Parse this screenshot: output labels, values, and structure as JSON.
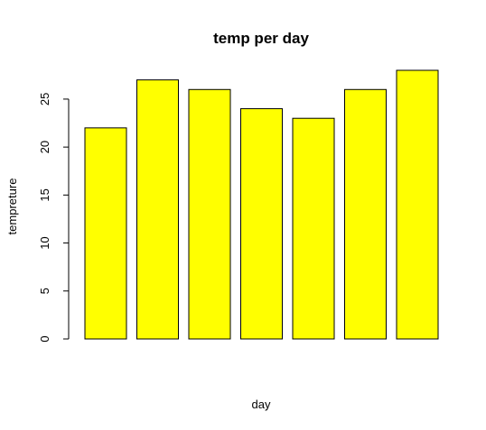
{
  "chart_data": {
    "type": "bar",
    "title": "temp per day",
    "xlabel": "day",
    "ylabel": "tempreture",
    "categories": [
      "",
      "",
      "",
      "",
      "",
      "",
      ""
    ],
    "values": [
      22,
      27,
      26,
      24,
      23,
      26,
      28
    ],
    "ylim": [
      0,
      28
    ],
    "yticks": [
      0,
      5,
      10,
      15,
      20,
      25
    ],
    "grid": false,
    "legend": "none",
    "bar_color": "#ffff00",
    "bar_border_color": "#000000"
  }
}
